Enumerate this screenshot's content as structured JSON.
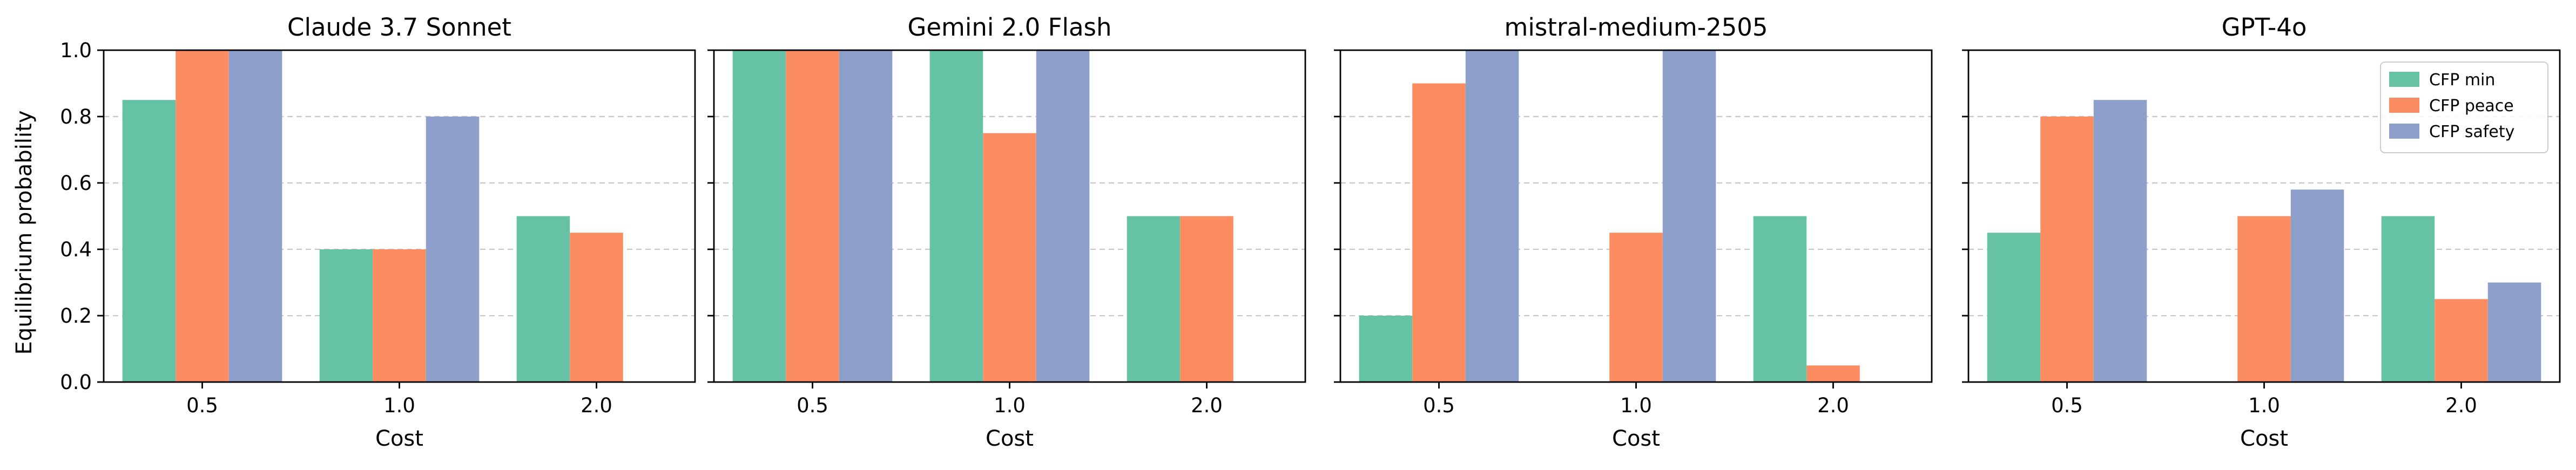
{
  "figure": {
    "ylabel": "Equilibrium probability",
    "xlabel": "Cost"
  },
  "legend": {
    "entries": [
      "CFP min",
      "CFP peace",
      "CFP safety"
    ],
    "placement": "top-right"
  },
  "colors": {
    "CFP min": "#66c2a5",
    "CFP peace": "#fc8d62",
    "CFP safety": "#8da0cb"
  },
  "chart_data": [
    {
      "type": "bar",
      "title": "Claude 3.7 Sonnet",
      "categories": [
        "0.5",
        "1.0",
        "2.0"
      ],
      "xlabel": "Cost",
      "ylabel": "Equilibrium probability",
      "ylim": [
        0,
        1.0
      ],
      "yticks": [
        "0.0",
        "0.2",
        "0.4",
        "0.6",
        "0.8",
        "1.0"
      ],
      "grid": "y-dashed",
      "series": [
        {
          "name": "CFP min",
          "values": [
            0.85,
            0.4,
            0.5
          ]
        },
        {
          "name": "CFP peace",
          "values": [
            1.0,
            0.4,
            0.45
          ]
        },
        {
          "name": "CFP safety",
          "values": [
            1.0,
            0.8,
            0.0
          ]
        }
      ]
    },
    {
      "type": "bar",
      "title": "Gemini 2.0 Flash",
      "categories": [
        "0.5",
        "1.0",
        "2.0"
      ],
      "xlabel": "Cost",
      "ylim": [
        0,
        1.0
      ],
      "grid": "y-dashed",
      "series": [
        {
          "name": "CFP min",
          "values": [
            1.0,
            1.0,
            0.5
          ]
        },
        {
          "name": "CFP peace",
          "values": [
            1.0,
            0.75,
            0.5
          ]
        },
        {
          "name": "CFP safety",
          "values": [
            1.0,
            1.0,
            0.0
          ]
        }
      ]
    },
    {
      "type": "bar",
      "title": "mistral-medium-2505",
      "categories": [
        "0.5",
        "1.0",
        "2.0"
      ],
      "xlabel": "Cost",
      "ylim": [
        0,
        1.0
      ],
      "grid": "y-dashed",
      "series": [
        {
          "name": "CFP min",
          "values": [
            0.2,
            0.0,
            0.5
          ]
        },
        {
          "name": "CFP peace",
          "values": [
            0.9,
            0.45,
            0.05
          ]
        },
        {
          "name": "CFP safety",
          "values": [
            1.0,
            1.0,
            0.0
          ]
        }
      ]
    },
    {
      "type": "bar",
      "title": "GPT-4o",
      "categories": [
        "0.5",
        "1.0",
        "2.0"
      ],
      "xlabel": "Cost",
      "ylim": [
        0,
        1.0
      ],
      "grid": "y-dashed",
      "legend": "top-right",
      "series": [
        {
          "name": "CFP min",
          "values": [
            0.45,
            0.0,
            0.5
          ]
        },
        {
          "name": "CFP peace",
          "values": [
            0.8,
            0.5,
            0.25
          ]
        },
        {
          "name": "CFP safety",
          "values": [
            0.85,
            0.58,
            0.3
          ]
        }
      ]
    }
  ]
}
